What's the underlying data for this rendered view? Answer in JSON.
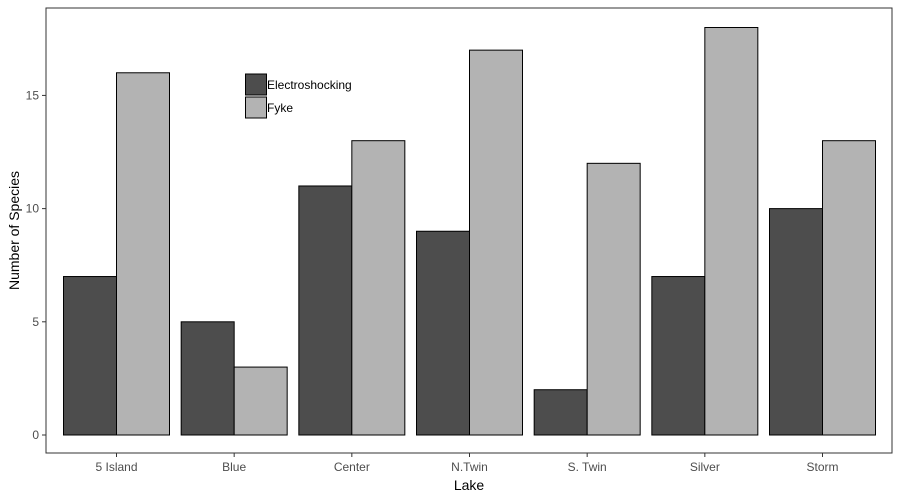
{
  "chart_data": {
    "type": "bar",
    "xlabel": "Lake",
    "ylabel": "Number of Species",
    "categories": [
      "5 Island",
      "Blue",
      "Center",
      "N.Twin",
      "S. Twin",
      "Silver",
      "Storm"
    ],
    "series": [
      {
        "name": "Electroshocking",
        "values": [
          7,
          5,
          11,
          9,
          2,
          7,
          10
        ],
        "color": "#4d4d4d"
      },
      {
        "name": "Fyke",
        "values": [
          16,
          3,
          13,
          17,
          12,
          18,
          13
        ],
        "color": "#b3b3b3"
      }
    ],
    "ylim": [
      0,
      18.9
    ],
    "yticks": [
      0,
      5,
      10,
      15
    ],
    "grid": false,
    "legend_position": "top-left inside"
  }
}
